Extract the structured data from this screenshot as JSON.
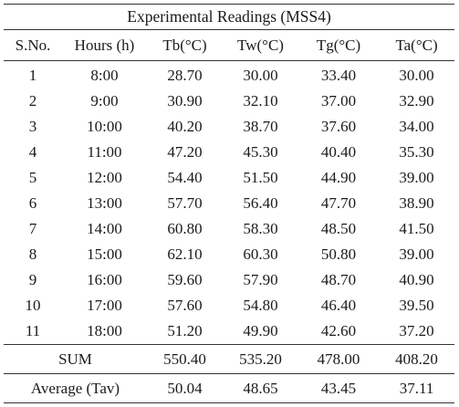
{
  "table": {
    "title": "Experimental Readings (MSS4)",
    "headers": [
      "S.No.",
      "Hours (h)",
      "Tb(°C)",
      "Tw(°C)",
      "Tg(°C)",
      "Ta(°C)"
    ],
    "rows": [
      [
        "1",
        "8:00",
        "28.70",
        "30.00",
        "33.40",
        "30.00"
      ],
      [
        "2",
        "9:00",
        "30.90",
        "32.10",
        "37.00",
        "32.90"
      ],
      [
        "3",
        "10:00",
        "40.20",
        "38.70",
        "37.60",
        "34.00"
      ],
      [
        "4",
        "11:00",
        "47.20",
        "45.30",
        "40.40",
        "35.30"
      ],
      [
        "5",
        "12:00",
        "54.40",
        "51.50",
        "44.90",
        "39.00"
      ],
      [
        "6",
        "13:00",
        "57.70",
        "56.40",
        "47.70",
        "38.90"
      ],
      [
        "7",
        "14:00",
        "60.80",
        "58.30",
        "48.50",
        "41.50"
      ],
      [
        "8",
        "15:00",
        "62.10",
        "60.30",
        "50.80",
        "39.00"
      ],
      [
        "9",
        "16:00",
        "59.60",
        "57.90",
        "48.70",
        "40.90"
      ],
      [
        "10",
        "17:00",
        "57.60",
        "54.80",
        "46.40",
        "39.50"
      ],
      [
        "11",
        "18:00",
        "51.20",
        "49.90",
        "42.60",
        "37.20"
      ]
    ],
    "sum": {
      "label": "SUM",
      "values": [
        "550.40",
        "535.20",
        "478.00",
        "408.20"
      ]
    },
    "average": {
      "label": "Average (Tav)",
      "values": [
        "50.04",
        "48.65",
        "43.45",
        "37.11"
      ]
    }
  }
}
